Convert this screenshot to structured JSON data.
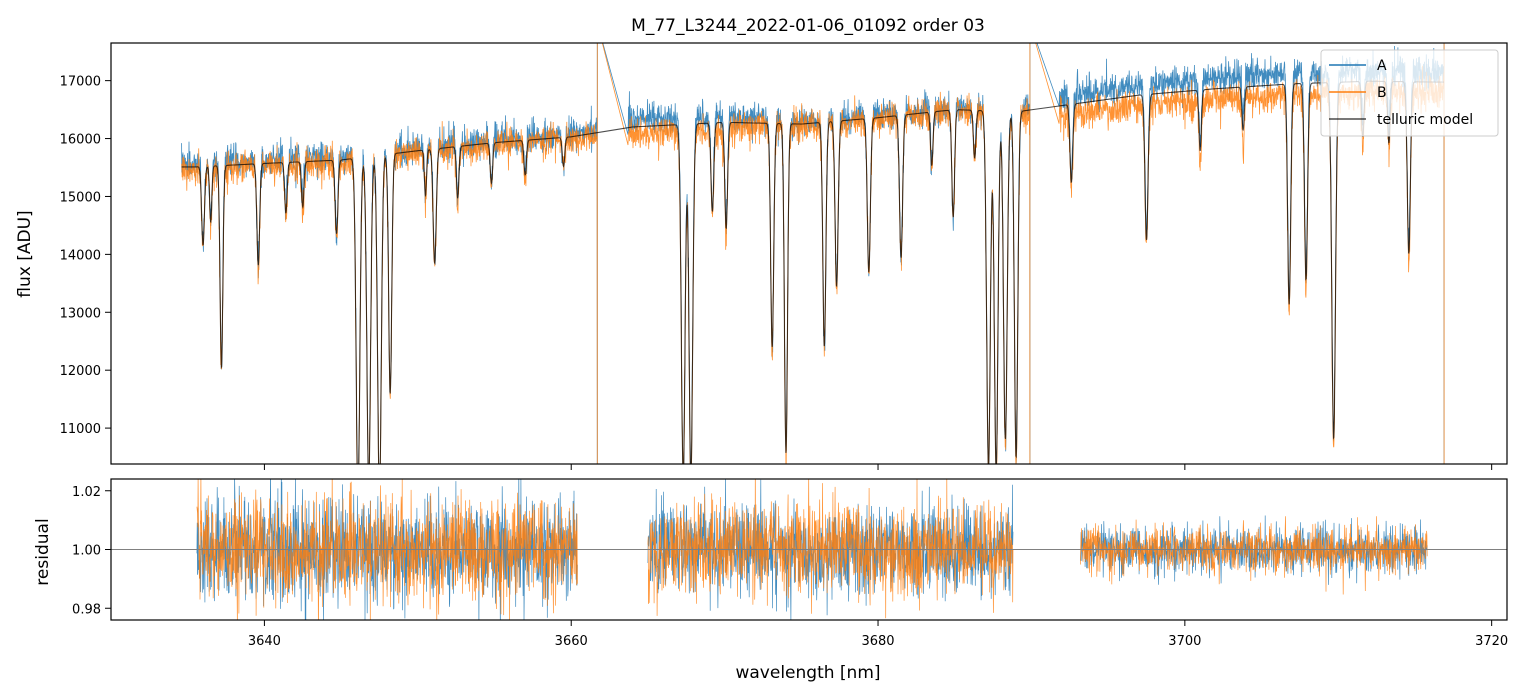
{
  "title": "M_77_L3244_2022-01-06_01092  order 03",
  "colors": {
    "A": "#1f77b4",
    "B": "#ff7f0e",
    "model": "#000000",
    "refline": "#808080"
  },
  "chart_data": [
    {
      "type": "line",
      "panel": "top",
      "ylabel": "flux [ADU]",
      "xlim": [
        3630,
        3721
      ],
      "ylim": [
        10380,
        17650
      ],
      "xticks": [
        3640,
        3660,
        3680,
        3700,
        3720
      ],
      "yticks": [
        11000,
        12000,
        13000,
        14000,
        15000,
        16000,
        17000
      ],
      "ytick_labels": [
        "11000",
        "12000",
        "13000",
        "14000",
        "15000",
        "16000",
        "17000"
      ],
      "legend": {
        "placement": "top-right",
        "entries": [
          "A",
          "B",
          "telluric model"
        ]
      },
      "valid_segments": [
        [
          3634.6,
          3661.7
        ],
        [
          3663.7,
          3689.9
        ],
        [
          3691.8,
          3716.9
        ]
      ],
      "continuum_A": [
        [
          3635.5,
          15560
        ],
        [
          3640,
          15620
        ],
        [
          3645,
          15680
        ],
        [
          3650,
          15820
        ],
        [
          3655,
          15960
        ],
        [
          3660,
          16060
        ],
        [
          3664,
          16320
        ],
        [
          3670,
          16380
        ],
        [
          3675,
          16280
        ],
        [
          3680,
          16380
        ],
        [
          3685,
          16520
        ],
        [
          3689,
          16480
        ],
        [
          3692,
          16720
        ],
        [
          3697,
          16920
        ],
        [
          3702,
          17040
        ],
        [
          3707,
          17130
        ],
        [
          3712,
          17180
        ],
        [
          3716.5,
          17150
        ]
      ],
      "continuum_B": [
        [
          3635.5,
          15460
        ],
        [
          3640,
          15520
        ],
        [
          3645,
          15580
        ],
        [
          3650,
          15760
        ],
        [
          3655,
          15900
        ],
        [
          3660,
          16000
        ],
        [
          3664,
          16080
        ],
        [
          3670,
          16180
        ],
        [
          3675,
          16220
        ],
        [
          3680,
          16340
        ],
        [
          3685,
          16480
        ],
        [
          3689,
          16440
        ],
        [
          3692,
          16420
        ],
        [
          3697,
          16580
        ],
        [
          3702,
          16680
        ],
        [
          3707,
          16760
        ],
        [
          3712,
          16800
        ],
        [
          3716.5,
          16800
        ]
      ],
      "absorption_lines": [
        [
          3636.0,
          1400,
          0.09
        ],
        [
          3636.5,
          1000,
          0.07
        ],
        [
          3637.2,
          3600,
          0.09
        ],
        [
          3639.6,
          1800,
          0.09
        ],
        [
          3641.4,
          900,
          0.08
        ],
        [
          3642.5,
          800,
          0.08
        ],
        [
          3644.7,
          1300,
          0.09
        ],
        [
          3646.1,
          6000,
          0.12
        ],
        [
          3646.8,
          5800,
          0.12
        ],
        [
          3647.5,
          6000,
          0.12
        ],
        [
          3648.2,
          4200,
          0.1
        ],
        [
          3650.5,
          800,
          0.07
        ],
        [
          3651.1,
          2000,
          0.1
        ],
        [
          3652.6,
          900,
          0.08
        ],
        [
          3654.8,
          700,
          0.08
        ],
        [
          3657.0,
          600,
          0.08
        ],
        [
          3659.5,
          500,
          0.08
        ],
        [
          3667.3,
          6000,
          0.12
        ],
        [
          3667.8,
          6000,
          0.12
        ],
        [
          3669.2,
          1500,
          0.09
        ],
        [
          3670.1,
          1800,
          0.09
        ],
        [
          3673.1,
          3800,
          0.1
        ],
        [
          3674.0,
          5600,
          0.1
        ],
        [
          3676.5,
          3800,
          0.1
        ],
        [
          3677.3,
          2800,
          0.1
        ],
        [
          3679.4,
          2600,
          0.1
        ],
        [
          3681.5,
          2400,
          0.1
        ],
        [
          3683.5,
          900,
          0.08
        ],
        [
          3684.9,
          1800,
          0.09
        ],
        [
          3686.3,
          800,
          0.08
        ],
        [
          3687.2,
          6000,
          0.12
        ],
        [
          3687.7,
          6000,
          0.12
        ],
        [
          3688.3,
          5500,
          0.12
        ],
        [
          3689.0,
          5800,
          0.11
        ],
        [
          3692.6,
          1300,
          0.09
        ],
        [
          3697.5,
          2400,
          0.1
        ],
        [
          3701.0,
          1000,
          0.08
        ],
        [
          3703.8,
          700,
          0.08
        ],
        [
          3706.8,
          3600,
          0.1
        ],
        [
          3707.9,
          3200,
          0.1
        ],
        [
          3709.7,
          5800,
          0.12
        ],
        [
          3711.6,
          900,
          0.08
        ],
        [
          3713.3,
          1000,
          0.08
        ],
        [
          3714.6,
          2800,
          0.1
        ]
      ]
    },
    {
      "type": "line",
      "panel": "bottom",
      "xlabel": "wavelength [nm]",
      "ylabel": "residual",
      "xlim": [
        3630,
        3721
      ],
      "ylim": [
        0.976,
        1.024
      ],
      "xticks": [
        3640,
        3660,
        3680,
        3700,
        3720
      ],
      "xtick_labels": [
        "3640",
        "3660",
        "3680",
        "3700",
        "3720"
      ],
      "yticks": [
        0.98,
        1.0,
        1.02
      ],
      "ytick_labels": [
        "0.98",
        "1.00",
        "1.02"
      ],
      "reference_line": 1.0,
      "segments": [
        [
          3635.6,
          3660.4,
          0.016
        ],
        [
          3665.0,
          3688.8,
          0.014
        ],
        [
          3693.2,
          3715.8,
          0.007
        ]
      ]
    }
  ]
}
